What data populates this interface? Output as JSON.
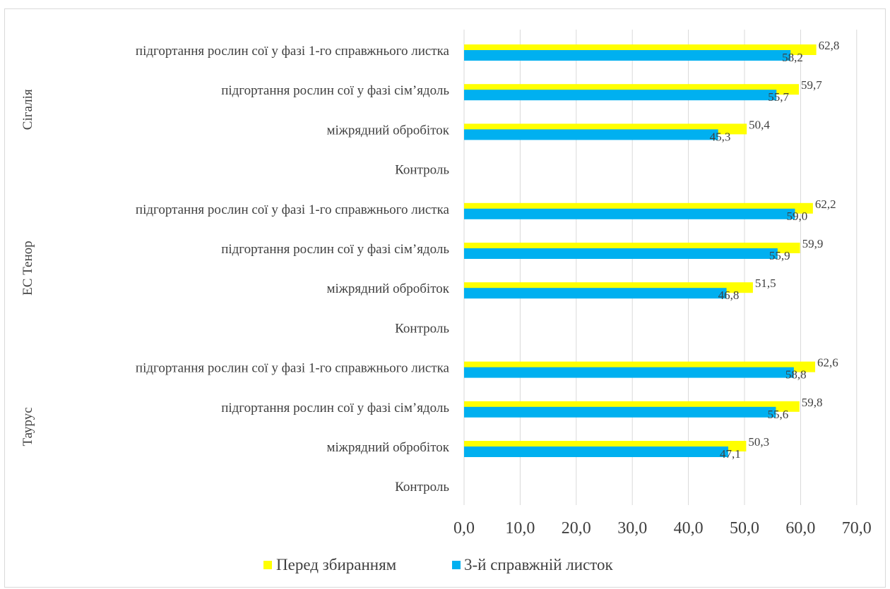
{
  "chart_data": {
    "type": "bar",
    "orientation": "horizontal",
    "title": "",
    "xlabel": "",
    "ylabel": "",
    "xlim": [
      0,
      70
    ],
    "xticks": [
      "0,0",
      "10,0",
      "20,0",
      "30,0",
      "40,0",
      "50,0",
      "60,0",
      "70,0"
    ],
    "grid": true,
    "legend_position": "bottom",
    "groups": [
      {
        "name": "Сігалія",
        "categories": [
          "підгортання рослин сої у фазі 1-го справжнього листка",
          "підгортання рослин сої у фазі сім’ядоль",
          "міжрядний обробіток",
          "Контроль"
        ]
      },
      {
        "name": "ЕС Тенор",
        "categories": [
          "підгортання рослин сої у фазі 1-го справжнього листка",
          "підгортання рослин сої у фазі сім’ядоль",
          "міжрядний обробіток",
          "Контроль"
        ]
      },
      {
        "name": "Таурус",
        "categories": [
          "підгортання рослин сої у фазі 1-го справжнього листка",
          "підгортання рослин сої у фазі сім’ядоль",
          "міжрядний обробіток",
          "Контроль"
        ]
      }
    ],
    "series": [
      {
        "name": "Перед збиранням",
        "color": "#ffff00",
        "values": [
          62.8,
          59.7,
          50.4,
          null,
          62.2,
          59.9,
          51.5,
          null,
          62.6,
          59.8,
          50.3,
          null
        ],
        "labels": [
          "62,8",
          "59,7",
          "50,4",
          "",
          "62,2",
          "59,9",
          "51,5",
          "",
          "62,6",
          "59,8",
          "50,3",
          ""
        ]
      },
      {
        "name": "3-й справжній листок",
        "color": "#00b0f0",
        "values": [
          58.2,
          55.7,
          45.3,
          null,
          59.0,
          55.9,
          46.8,
          null,
          58.8,
          55.6,
          47.1,
          null
        ],
        "labels": [
          "58,2",
          "55,7",
          "45,3",
          "",
          "59,0",
          "55,9",
          "46,8",
          "",
          "58,8",
          "55,6",
          "47,1",
          ""
        ]
      }
    ]
  }
}
